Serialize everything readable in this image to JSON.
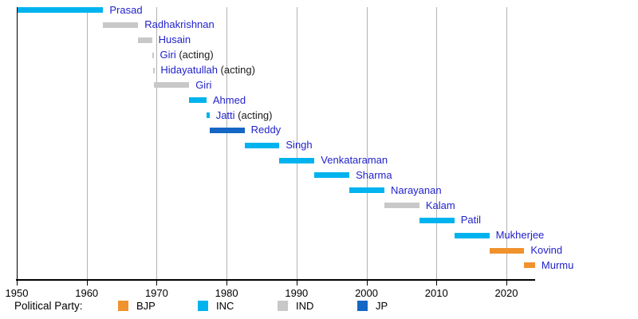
{
  "chart_data": {
    "type": "bar",
    "variant": "gantt-timeline",
    "x_axis": {
      "ticks": [
        1950,
        1960,
        1970,
        1980,
        1990,
        2000,
        2010,
        2020
      ],
      "range": [
        1950,
        2024.1
      ],
      "grid": true
    },
    "legend": {
      "title": "Political Party:",
      "position": "bottom",
      "entries": [
        {
          "label": "BJP",
          "color": "#f0922d"
        },
        {
          "label": "INC",
          "color": "#00b3ee"
        },
        {
          "label": "IND",
          "color": "#c8c8c8"
        },
        {
          "label": "JP",
          "color": "#1467c4"
        }
      ]
    },
    "series": [
      {
        "name": "Prasad",
        "suffix": "",
        "party": "INC",
        "start": 1950.07,
        "end": 1962.36
      },
      {
        "name": "Radhakrishnan",
        "suffix": "",
        "party": "IND",
        "start": 1962.36,
        "end": 1967.36
      },
      {
        "name": "Husain",
        "suffix": "",
        "party": "IND",
        "start": 1967.36,
        "end": 1969.34
      },
      {
        "name": "Giri",
        "suffix": "(acting)",
        "party": "IND",
        "start": 1969.34,
        "end": 1969.55
      },
      {
        "name": "Hidayatullah",
        "suffix": "(acting)",
        "party": "IND",
        "start": 1969.55,
        "end": 1969.65
      },
      {
        "name": "Giri",
        "suffix": "",
        "party": "IND",
        "start": 1969.65,
        "end": 1974.65
      },
      {
        "name": "Ahmed",
        "suffix": "",
        "party": "INC",
        "start": 1974.65,
        "end": 1977.12
      },
      {
        "name": "Jatti",
        "suffix": "(acting)",
        "party": "INC",
        "start": 1977.12,
        "end": 1977.56
      },
      {
        "name": "Reddy",
        "suffix": "",
        "party": "JP",
        "start": 1977.56,
        "end": 1982.56
      },
      {
        "name": "Singh",
        "suffix": "",
        "party": "INC",
        "start": 1982.56,
        "end": 1987.56
      },
      {
        "name": "Venkataraman",
        "suffix": "",
        "party": "INC",
        "start": 1987.56,
        "end": 1992.56
      },
      {
        "name": "Sharma",
        "suffix": "",
        "party": "INC",
        "start": 1992.56,
        "end": 1997.56
      },
      {
        "name": "Narayanan",
        "suffix": "",
        "party": "INC",
        "start": 1997.56,
        "end": 2002.56
      },
      {
        "name": "Kalam",
        "suffix": "",
        "party": "IND",
        "start": 2002.56,
        "end": 2007.56
      },
      {
        "name": "Patil",
        "suffix": "",
        "party": "INC",
        "start": 2007.56,
        "end": 2012.56
      },
      {
        "name": "Mukherjee",
        "suffix": "",
        "party": "INC",
        "start": 2012.56,
        "end": 2017.56
      },
      {
        "name": "Kovind",
        "suffix": "",
        "party": "BJP",
        "start": 2017.56,
        "end": 2022.56
      },
      {
        "name": "Murmu",
        "suffix": "",
        "party": "BJP",
        "start": 2022.56,
        "end": 2024.1
      }
    ]
  },
  "style_colors": {
    "name_link": "#2222cc",
    "suffix_text": "#1a1a1a",
    "axis": "#000000",
    "grid": "#b3b3b3",
    "background": "#ffffff"
  }
}
